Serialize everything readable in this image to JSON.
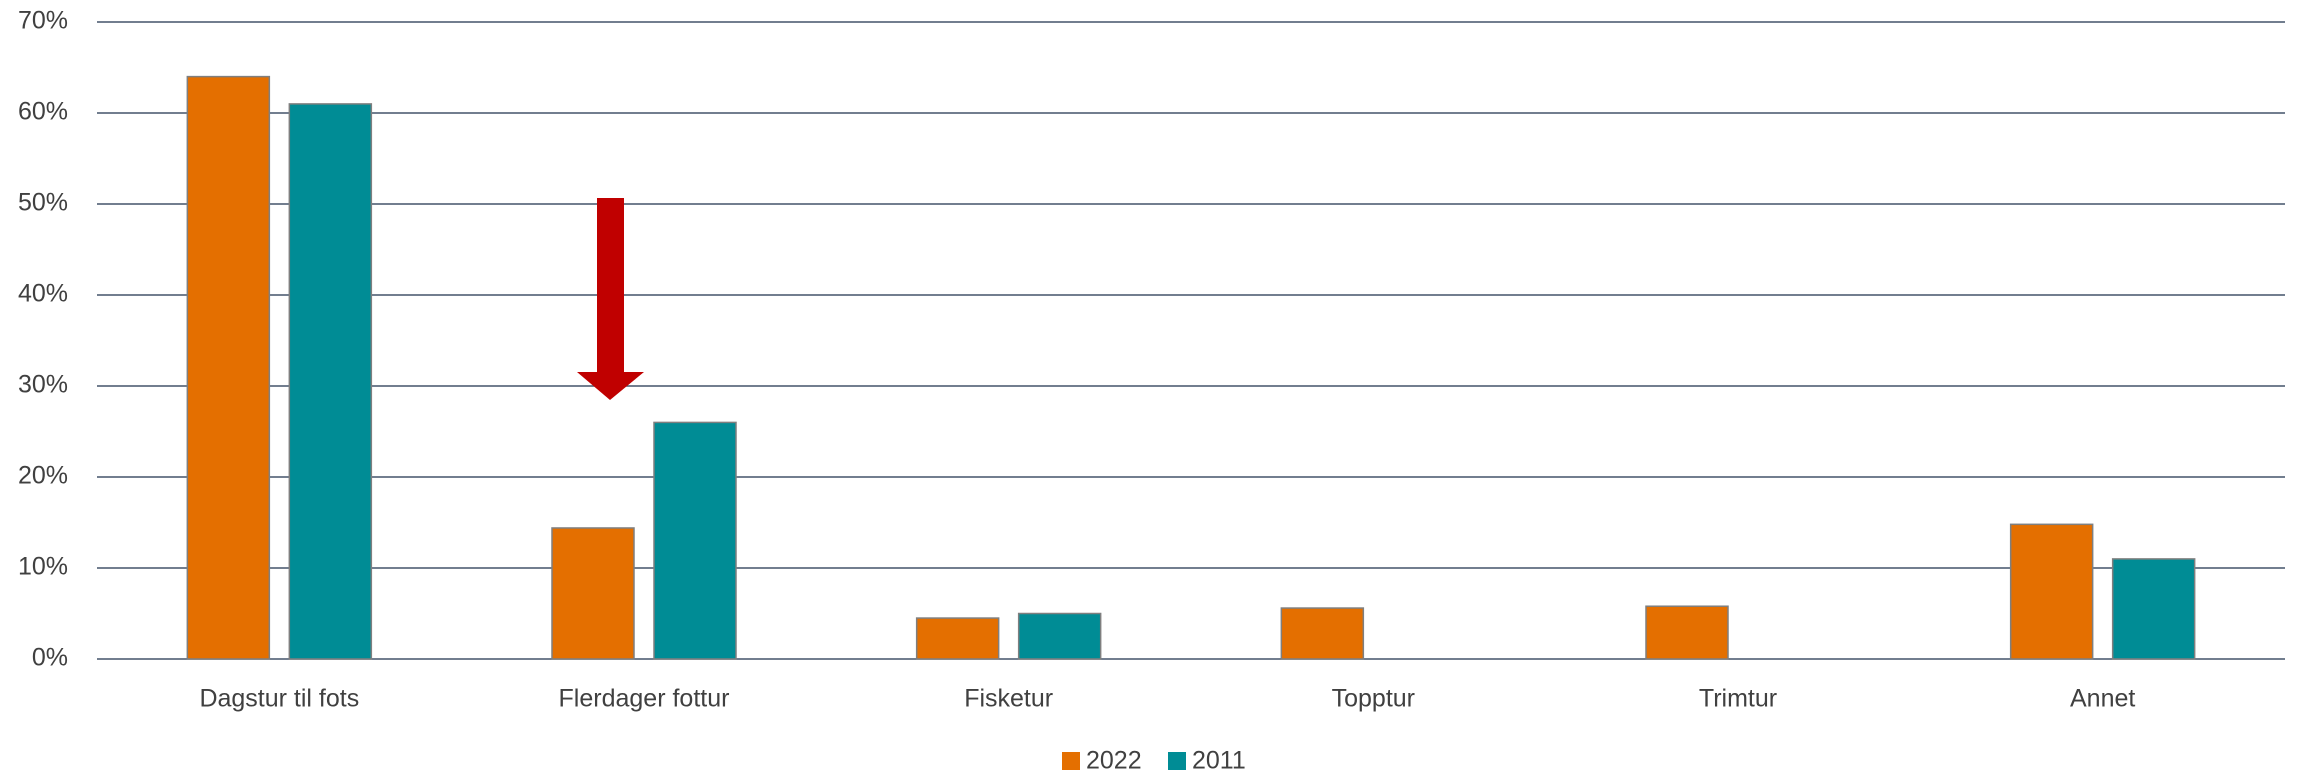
{
  "chart_data": {
    "type": "bar",
    "categories": [
      "Dagstur til fots",
      "Flerdager fottur",
      "Fisketur",
      "Topptur",
      "Trimtur",
      "Annet"
    ],
    "series": [
      {
        "name": "2022",
        "color": "#e46f00",
        "values": [
          64,
          14.4,
          4.5,
          5.6,
          5.8,
          14.8
        ]
      },
      {
        "name": "2011",
        "color": "#008c95",
        "values": [
          61,
          26,
          5,
          null,
          null,
          11
        ]
      }
    ],
    "ylim": [
      0,
      70
    ],
    "yticks": [
      {
        "value": 0,
        "label": "0%"
      },
      {
        "value": 10,
        "label": "10%"
      },
      {
        "value": 20,
        "label": "20%"
      },
      {
        "value": 30,
        "label": "30%"
      },
      {
        "value": 40,
        "label": "40%"
      },
      {
        "value": 50,
        "label": "50%"
      },
      {
        "value": 60,
        "label": "60%"
      },
      {
        "value": 70,
        "label": "70%"
      }
    ],
    "grid": true,
    "legend": "bottom"
  }
}
